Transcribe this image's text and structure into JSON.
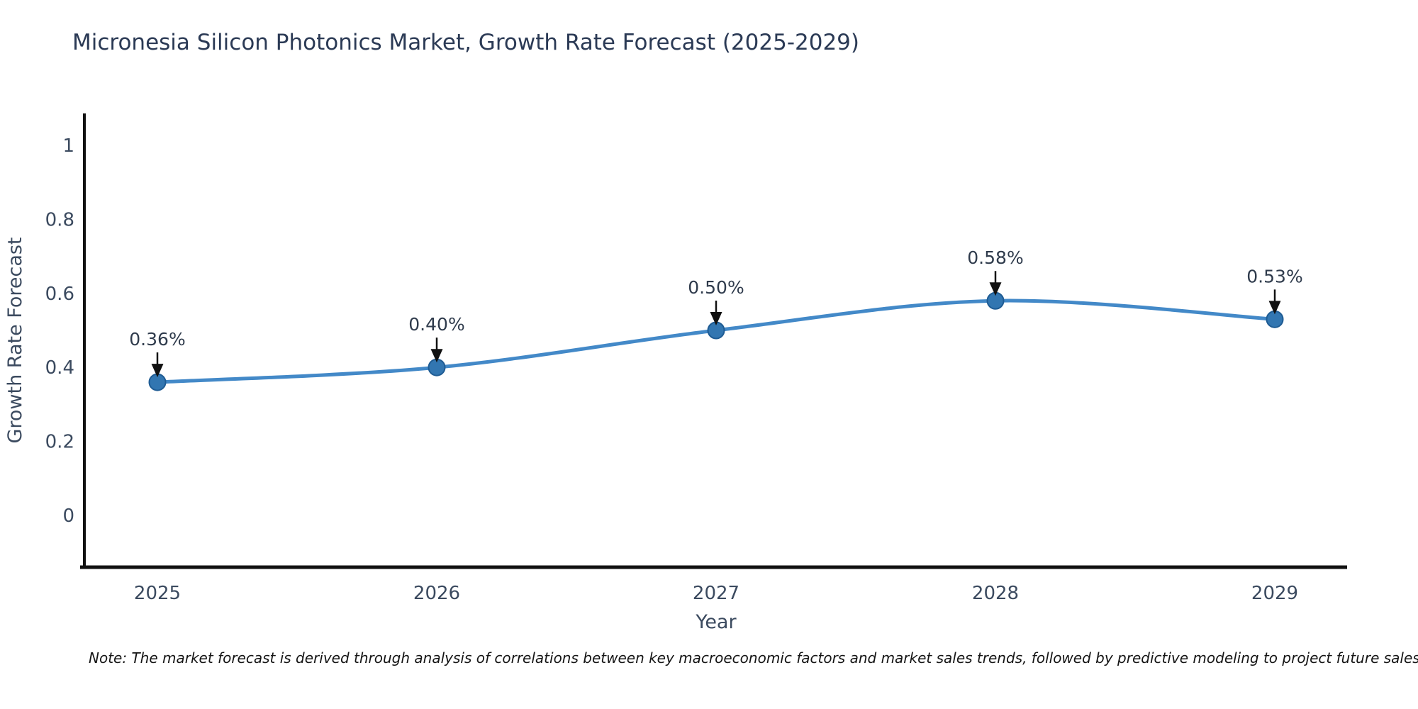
{
  "title": "Micronesia Silicon Photonics Market, Growth Rate Forecast (2025-2029)",
  "note": "Note: The market forecast is derived through analysis of correlations between key macroeconomic factors and market sales trends, followed by predictive modeling to project future sales",
  "chart_data": {
    "type": "line",
    "title": "Micronesia Silicon Photonics Market, Growth Rate Forecast (2025-2029)",
    "xlabel": "Year",
    "ylabel": "Growth Rate Forecast",
    "categories": [
      "2025",
      "2026",
      "2027",
      "2028",
      "2029"
    ],
    "series": [
      {
        "name": "Growth Rate Forecast",
        "values": [
          0.36,
          0.4,
          0.5,
          0.58,
          0.53
        ]
      }
    ],
    "point_labels": [
      "0.36%",
      "0.40%",
      "0.50%",
      "0.58%",
      "0.53%"
    ],
    "yticks": [
      0,
      0.2,
      0.4,
      0.6,
      0.8,
      1
    ],
    "ytick_labels": [
      "0",
      "0.2",
      "0.4",
      "0.6",
      "0.8",
      "1"
    ],
    "ylim": [
      -0.14,
      1.09
    ],
    "grid": false,
    "legend_position": "none",
    "line_smoothing": true,
    "colors": {
      "line": "#4389c8",
      "marker": "#3276b1",
      "marker_edge": "#1f5c94",
      "arrow": "#111111",
      "axis": "#111111",
      "title_text": "#2b3a55",
      "tick_text": "#3b4a5f",
      "note_text": "#151515"
    }
  }
}
